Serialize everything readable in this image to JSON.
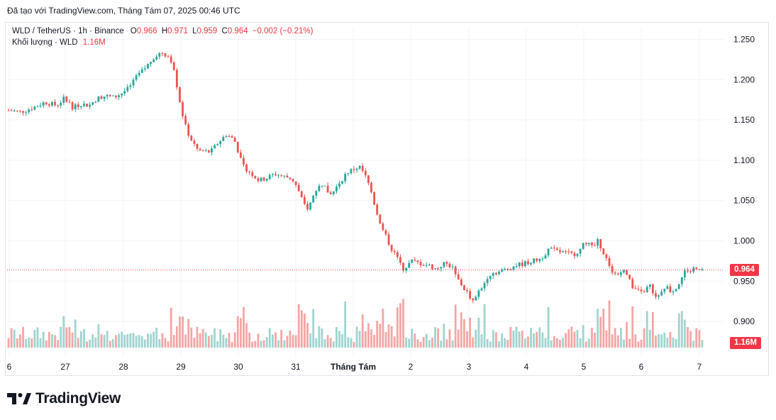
{
  "header": {
    "created_with": "Đã tạo với TradingView.com, Tháng Tám 07, 2025 00:46 UTC"
  },
  "legend": {
    "symbol": "WLD / TetherUS · 1h · Binance",
    "open_label": "O",
    "open": "0.966",
    "high_label": "H",
    "high": "0.971",
    "low_label": "L",
    "low": "0.959",
    "close_label": "C",
    "close": "0.964",
    "change": "−0.002 (−0.21%)",
    "volume_label": "Khối lượng · WLD",
    "volume": "1.16M"
  },
  "price_tag": "0.964",
  "volume_tag": "1.16M",
  "brand": "TradingView",
  "colors": {
    "up": "#26a69a",
    "down": "#ef5350",
    "up_vol": "#9fd4cf",
    "down_vol": "#f3a6a4",
    "last_price": "#f23645"
  },
  "chart_data": {
    "type": "candlestick",
    "symbol": "WLD / TetherUS",
    "interval": "1h",
    "exchange": "Binance",
    "y_axis": {
      "ticks": [
        1.25,
        1.2,
        1.15,
        1.1,
        1.05,
        1.0,
        0.95,
        0.9
      ],
      "tick_labels": [
        "1.250",
        "1.200",
        "1.150",
        "1.100",
        "1.050",
        "1.000",
        "0.950",
        "0.900"
      ],
      "ylim": [
        0.885,
        1.265
      ]
    },
    "x_axis": {
      "tick_labels": [
        "6",
        "27",
        "28",
        "29",
        "30",
        "31",
        "Tháng Tám",
        "2",
        "3",
        "4",
        "5",
        "6",
        "7"
      ]
    },
    "last_price": 0.964,
    "last_volume": "1.16M",
    "close_path": [
      [
        0,
        1.162
      ],
      [
        3,
        1.16
      ],
      [
        6,
        1.165
      ],
      [
        9,
        1.172
      ],
      [
        12,
        1.168
      ],
      [
        14,
        1.178
      ],
      [
        16,
        1.165
      ],
      [
        18,
        1.17
      ],
      [
        20,
        1.168
      ],
      [
        22,
        1.177
      ],
      [
        24,
        1.18
      ],
      [
        26,
        1.178
      ],
      [
        28,
        1.183
      ],
      [
        30,
        1.19
      ],
      [
        32,
        1.205
      ],
      [
        34,
        1.215
      ],
      [
        36,
        1.228
      ],
      [
        38,
        1.234
      ],
      [
        40,
        1.228
      ],
      [
        41,
        1.215
      ],
      [
        42,
        1.185
      ],
      [
        43,
        1.16
      ],
      [
        44,
        1.14
      ],
      [
        45,
        1.128
      ],
      [
        46,
        1.12
      ],
      [
        47,
        1.112
      ],
      [
        48,
        1.112
      ],
      [
        50,
        1.11
      ],
      [
        52,
        1.122
      ],
      [
        54,
        1.132
      ],
      [
        56,
        1.125
      ],
      [
        57,
        1.11
      ],
      [
        58,
        1.093
      ],
      [
        60,
        1.085
      ],
      [
        62,
        1.075
      ],
      [
        64,
        1.078
      ],
      [
        66,
        1.083
      ],
      [
        68,
        1.08
      ],
      [
        70,
        1.078
      ],
      [
        71,
        1.072
      ],
      [
        72,
        1.06
      ],
      [
        73,
        1.048
      ],
      [
        74,
        1.04
      ],
      [
        75,
        1.048
      ],
      [
        76,
        1.062
      ],
      [
        78,
        1.072
      ],
      [
        79,
        1.062
      ],
      [
        80,
        1.057
      ],
      [
        82,
        1.072
      ],
      [
        84,
        1.085
      ],
      [
        86,
        1.09
      ],
      [
        87,
        1.092
      ],
      [
        88,
        1.085
      ],
      [
        89,
        1.075
      ],
      [
        90,
        1.06
      ],
      [
        91,
        1.04
      ],
      [
        92,
        1.025
      ],
      [
        93,
        1.012
      ],
      [
        94,
        1.0
      ],
      [
        95,
        0.99
      ],
      [
        96,
        0.982
      ],
      [
        97,
        0.975
      ],
      [
        98,
        0.965
      ],
      [
        99,
        0.97
      ],
      [
        100,
        0.975
      ],
      [
        102,
        0.972
      ],
      [
        104,
        0.97
      ],
      [
        106,
        0.965
      ],
      [
        108,
        0.972
      ],
      [
        110,
        0.968
      ],
      [
        111,
        0.955
      ],
      [
        112,
        0.948
      ],
      [
        113,
        0.94
      ],
      [
        114,
        0.935
      ],
      [
        115,
        0.925
      ],
      [
        116,
        0.93
      ],
      [
        117,
        0.94
      ],
      [
        118,
        0.948
      ],
      [
        119,
        0.958
      ],
      [
        120,
        0.96
      ],
      [
        122,
        0.962
      ],
      [
        124,
        0.966
      ],
      [
        126,
        0.97
      ],
      [
        128,
        0.972
      ],
      [
        130,
        0.975
      ],
      [
        132,
        0.978
      ],
      [
        134,
        0.99
      ],
      [
        136,
        0.987
      ],
      [
        138,
        0.985
      ],
      [
        140,
        0.983
      ],
      [
        142,
        0.99
      ],
      [
        143,
        1.0
      ],
      [
        144,
        0.995
      ],
      [
        145,
        0.99
      ],
      [
        146,
        1.0
      ],
      [
        147,
        0.992
      ],
      [
        148,
        0.98
      ],
      [
        149,
        0.97
      ],
      [
        150,
        0.96
      ],
      [
        151,
        0.957
      ],
      [
        152,
        0.965
      ],
      [
        153,
        0.96
      ],
      [
        154,
        0.95
      ],
      [
        155,
        0.942
      ],
      [
        156,
        0.938
      ],
      [
        157,
        0.935
      ],
      [
        158,
        0.94
      ],
      [
        159,
        0.945
      ],
      [
        160,
        0.935
      ],
      [
        161,
        0.93
      ],
      [
        162,
        0.94
      ],
      [
        163,
        0.945
      ],
      [
        164,
        0.938
      ],
      [
        165,
        0.94
      ],
      [
        166,
        0.945
      ],
      [
        167,
        0.955
      ],
      [
        168,
        0.965
      ],
      [
        169,
        0.962
      ],
      [
        170,
        0.966
      ],
      [
        171,
        0.968
      ],
      [
        172,
        0.964
      ]
    ]
  }
}
